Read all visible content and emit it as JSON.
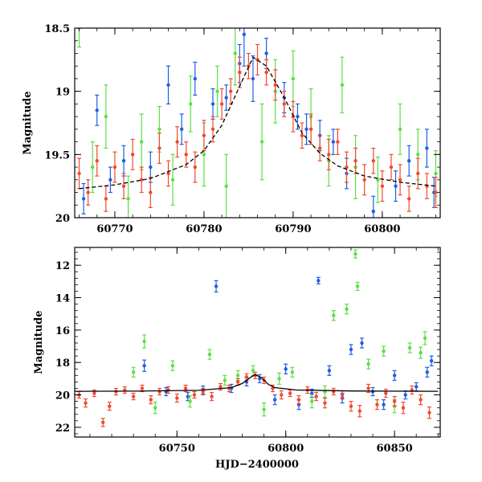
{
  "chart_data": [
    {
      "type": "scatter",
      "panel": "top",
      "title": "",
      "xlabel": "",
      "ylabel": "Magnitude",
      "xlim": [
        60765.5,
        60806.5
      ],
      "ylim": [
        20.0,
        18.5
      ],
      "y_inverted": true,
      "xticks": [
        60770,
        60780,
        60790,
        60800
      ],
      "yticks": [
        18.5,
        19.0,
        19.5,
        20.0
      ],
      "ytick_labels": [
        "18.5",
        "19",
        "19.5",
        "20"
      ],
      "grid": false,
      "legend": "none",
      "colors": {
        "blue": "#1f5fe0",
        "red": "#f04a30",
        "green": "#5ce045",
        "model": "#000000"
      },
      "model_curve": {
        "name": "",
        "style": "dashed",
        "x": [
          60766,
          60770,
          60774,
          60778,
          60780,
          60782,
          60784,
          60785.5,
          60787,
          60789,
          60791,
          60793,
          60795,
          60798,
          60802,
          60806
        ],
        "y": [
          19.77,
          19.74,
          19.69,
          19.58,
          19.47,
          19.27,
          18.96,
          18.73,
          18.8,
          19.05,
          19.33,
          19.49,
          19.59,
          19.67,
          19.72,
          19.75
        ]
      },
      "series": [
        {
          "name": "",
          "color": "#1f5fe0",
          "x": [
            60766.5,
            60768.0,
            60769.5,
            60771.0,
            60774.0,
            60776.0,
            60777.5,
            60779.0,
            60781.0,
            60782.5,
            60784.0,
            60784.5,
            60785.5,
            60787.0,
            60789.0,
            60790.5,
            60791.5,
            60793.0,
            60794.5,
            60796.0,
            60799.0,
            60801.5,
            60803.0,
            60805.0,
            60805.8
          ],
          "y": [
            19.85,
            19.15,
            19.7,
            19.55,
            19.6,
            18.95,
            19.3,
            18.9,
            19.1,
            19.05,
            18.78,
            18.55,
            18.9,
            18.7,
            19.05,
            19.2,
            19.3,
            19.35,
            19.4,
            19.65,
            19.95,
            19.75,
            19.55,
            19.45,
            19.8
          ],
          "err": [
            0.12,
            0.12,
            0.1,
            0.12,
            0.12,
            0.15,
            0.12,
            0.13,
            0.12,
            0.1,
            0.15,
            0.25,
            0.18,
            0.12,
            0.12,
            0.1,
            0.12,
            0.12,
            0.1,
            0.12,
            0.12,
            0.12,
            0.12,
            0.15,
            0.12
          ]
        },
        {
          "name": "",
          "color": "#5ce045",
          "x": [
            60766.0,
            60767.5,
            60769.0,
            60771.5,
            60773.0,
            60775.0,
            60776.5,
            60778.5,
            60780.0,
            60781.5,
            60782.5,
            60783.5,
            60786.5,
            60788.0,
            60790.0,
            60792.0,
            60794.0,
            60795.5,
            60797.0,
            60799.5,
            60802.0,
            60804.0,
            60806.0
          ],
          "y": [
            18.5,
            19.6,
            19.2,
            19.85,
            19.4,
            19.3,
            19.7,
            19.1,
            19.5,
            19.0,
            19.75,
            18.7,
            19.4,
            19.0,
            18.9,
            19.2,
            19.55,
            18.95,
            19.6,
            19.7,
            19.3,
            19.5,
            19.65
          ],
          "err": [
            0.15,
            0.2,
            0.25,
            0.18,
            0.22,
            0.18,
            0.2,
            0.22,
            0.25,
            0.2,
            0.25,
            0.25,
            0.3,
            0.25,
            0.22,
            0.22,
            0.2,
            0.22,
            0.25,
            0.18,
            0.2,
            0.2,
            0.18
          ]
        },
        {
          "name": "",
          "color": "#f04a30",
          "x": [
            60766.0,
            60767.0,
            60768.0,
            60769.0,
            60770.0,
            60771.0,
            60772.0,
            60773.0,
            60774.0,
            60775.0,
            60776.0,
            60777.0,
            60778.0,
            60779.0,
            60780.0,
            60781.0,
            60782.0,
            60783.0,
            60784.0,
            60785.0,
            60786.0,
            60787.0,
            60788.0,
            60789.0,
            60790.0,
            60791.0,
            60792.0,
            60793.0,
            60794.0,
            60795.0,
            60796.0,
            60797.0,
            60798.0,
            60799.0,
            60800.0,
            60801.0,
            60802.0,
            60803.0,
            60804.0,
            60805.0,
            60806.0
          ],
          "y": [
            19.65,
            19.8,
            19.55,
            19.85,
            19.6,
            19.75,
            19.5,
            19.7,
            19.8,
            19.45,
            19.65,
            19.4,
            19.5,
            19.6,
            19.35,
            19.3,
            19.1,
            19.0,
            18.85,
            18.8,
            18.75,
            18.85,
            18.95,
            19.1,
            19.2,
            19.35,
            19.3,
            19.45,
            19.5,
            19.4,
            19.6,
            19.55,
            19.7,
            19.55,
            19.75,
            19.6,
            19.7,
            19.85,
            19.65,
            19.75,
            19.8
          ],
          "err": [
            0.12,
            0.1,
            0.12,
            0.1,
            0.12,
            0.1,
            0.12,
            0.1,
            0.12,
            0.12,
            0.1,
            0.12,
            0.1,
            0.12,
            0.12,
            0.1,
            0.12,
            0.1,
            0.12,
            0.1,
            0.12,
            0.1,
            0.12,
            0.1,
            0.12,
            0.1,
            0.12,
            0.1,
            0.12,
            0.1,
            0.12,
            0.1,
            0.12,
            0.1,
            0.12,
            0.1,
            0.12,
            0.1,
            0.12,
            0.1,
            0.12
          ]
        }
      ]
    },
    {
      "type": "scatter",
      "panel": "bottom",
      "title": "",
      "xlabel": "HJD−2400000",
      "ylabel": "Magnitude",
      "xlim": [
        60703,
        60871
      ],
      "ylim": [
        22.6,
        10.9
      ],
      "y_inverted": true,
      "xticks": [
        60750,
        60800,
        60850
      ],
      "yticks": [
        12,
        14,
        16,
        18,
        20,
        22
      ],
      "ytick_labels": [
        "12",
        "14",
        "16",
        "18",
        "20",
        "22"
      ],
      "grid": false,
      "legend": "none",
      "colors": {
        "blue": "#1f5fe0",
        "red": "#f04a30",
        "green": "#5ce045",
        "model": "#000000"
      },
      "model_curve": {
        "name": "",
        "style": "solid",
        "x": [
          60703,
          60730,
          60760,
          60775,
          60780,
          60784,
          60786,
          60789,
          60792,
          60795,
          60805,
          60830,
          60870
        ],
        "y": [
          19.78,
          19.77,
          19.72,
          19.55,
          19.3,
          18.9,
          18.75,
          18.95,
          19.35,
          19.55,
          19.7,
          19.76,
          19.78
        ]
      },
      "series": [
        {
          "name": "",
          "color": "#1f5fe0",
          "x": [
            60735,
            60745,
            60755,
            60762,
            60768,
            60775,
            60782,
            60788,
            60795,
            60800,
            60806,
            60812,
            60815,
            60820,
            60826,
            60830,
            60835,
            60840,
            60845,
            60850,
            60855,
            60860,
            60865,
            60867
          ],
          "y": [
            18.2,
            19.8,
            20.1,
            19.7,
            13.3,
            19.6,
            19.2,
            19.0,
            20.3,
            18.4,
            20.6,
            19.9,
            12.95,
            18.5,
            20.2,
            17.2,
            16.8,
            19.8,
            20.6,
            18.8,
            20.0,
            19.5,
            18.6,
            17.9
          ],
          "err": [
            0.35,
            0.25,
            0.25,
            0.25,
            0.35,
            0.25,
            0.25,
            0.25,
            0.3,
            0.3,
            0.3,
            0.25,
            0.2,
            0.3,
            0.3,
            0.3,
            0.3,
            0.25,
            0.3,
            0.3,
            0.25,
            0.25,
            0.3,
            0.3
          ]
        },
        {
          "name": "",
          "color": "#5ce045",
          "x": [
            60730,
            60735,
            60740,
            60748,
            60756,
            60765,
            60772,
            60778,
            60785,
            60790,
            60797,
            60803,
            60812,
            60818,
            60822,
            60828,
            60832,
            60833,
            60838,
            60845,
            60850,
            60857,
            60862,
            60864
          ],
          "y": [
            18.6,
            16.7,
            20.8,
            18.2,
            20.4,
            17.5,
            19.1,
            18.8,
            18.5,
            20.9,
            19.0,
            18.6,
            20.4,
            19.8,
            15.1,
            14.7,
            11.3,
            13.3,
            18.1,
            17.3,
            20.7,
            17.1,
            17.4,
            16.5
          ],
          "err": [
            0.3,
            0.4,
            0.35,
            0.3,
            0.35,
            0.3,
            0.3,
            0.3,
            0.3,
            0.4,
            0.35,
            0.3,
            0.4,
            0.35,
            0.3,
            0.3,
            0.25,
            0.25,
            0.3,
            0.3,
            0.4,
            0.3,
            0.35,
            0.4
          ]
        },
        {
          "name": "",
          "color": "#f04a30",
          "x": [
            60705,
            60708,
            60712,
            60716,
            60719,
            60722,
            60726,
            60730,
            60734,
            60738,
            60742,
            60746,
            60750,
            60754,
            60758,
            60762,
            60766,
            60770,
            60774,
            60778,
            60782,
            60786,
            60790,
            60794,
            60798,
            60802,
            60806,
            60810,
            60814,
            60818,
            60822,
            60826,
            60830,
            60834,
            60838,
            60842,
            60846,
            60850,
            60854,
            60858,
            60862,
            60866
          ],
          "y": [
            20.0,
            20.5,
            19.9,
            21.7,
            20.7,
            19.8,
            19.7,
            20.1,
            19.6,
            20.3,
            19.8,
            19.7,
            20.2,
            19.6,
            20.0,
            19.8,
            20.1,
            19.5,
            19.6,
            19.2,
            18.9,
            18.8,
            19.1,
            19.6,
            20.0,
            19.9,
            20.3,
            19.7,
            20.1,
            20.5,
            19.8,
            20.0,
            20.7,
            21.0,
            19.6,
            20.6,
            19.9,
            20.4,
            20.8,
            19.7,
            20.3,
            21.1
          ],
          "err": [
            0.2,
            0.25,
            0.2,
            0.25,
            0.25,
            0.2,
            0.2,
            0.2,
            0.2,
            0.25,
            0.2,
            0.2,
            0.25,
            0.2,
            0.2,
            0.2,
            0.25,
            0.2,
            0.2,
            0.2,
            0.2,
            0.2,
            0.2,
            0.2,
            0.25,
            0.2,
            0.25,
            0.2,
            0.25,
            0.3,
            0.2,
            0.25,
            0.3,
            0.35,
            0.25,
            0.3,
            0.25,
            0.3,
            0.35,
            0.25,
            0.3,
            0.35
          ]
        }
      ]
    }
  ]
}
